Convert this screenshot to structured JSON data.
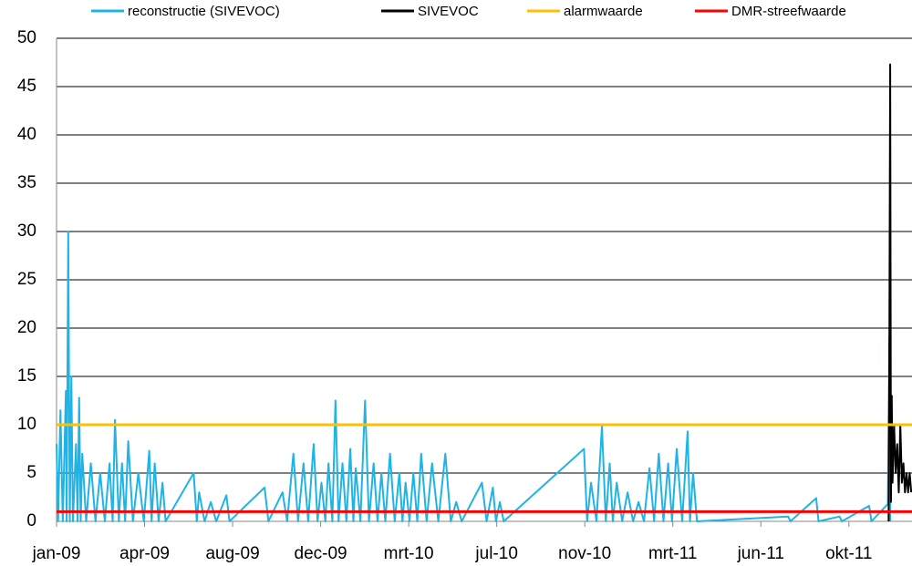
{
  "chart_data": {
    "type": "line",
    "xlim": [
      0,
      1098
    ],
    "xticks": [
      {
        "value": 0,
        "label": "jan-09"
      },
      {
        "value": 113,
        "label": "apr-09"
      },
      {
        "value": 226,
        "label": "aug-09"
      },
      {
        "value": 339,
        "label": "dec-09"
      },
      {
        "value": 452,
        "label": "mrt-10"
      },
      {
        "value": 565,
        "label": "jul-10"
      },
      {
        "value": 678,
        "label": "nov-10"
      },
      {
        "value": 791,
        "label": "mrt-11"
      },
      {
        "value": 904,
        "label": "jun-11"
      },
      {
        "value": 1017,
        "label": "okt-11"
      }
    ],
    "ylim": [
      0,
      50
    ],
    "yticks": [
      0,
      5,
      10,
      15,
      20,
      25,
      30,
      35,
      40,
      45,
      50
    ],
    "grid": true,
    "legend": "top",
    "series": [
      {
        "name": "reconstructie (SIVEVOC)",
        "color": "#1fb4e6",
        "x": [
          0,
          2,
          5,
          8,
          12,
          13,
          15,
          17,
          19,
          21,
          25,
          27,
          29,
          31,
          33,
          38,
          44,
          50,
          56,
          62,
          68,
          72,
          75,
          80,
          84,
          88,
          92,
          98,
          105,
          112,
          119,
          122,
          126,
          131,
          136,
          140,
          176,
          180,
          183,
          190,
          198,
          205,
          218,
          222,
          267,
          272,
          290,
          296,
          304,
          310,
          317,
          323,
          330,
          335,
          340,
          345,
          349,
          354,
          358,
          362,
          367,
          372,
          377,
          381,
          384,
          390,
          396,
          401,
          407,
          412,
          417,
          422,
          428,
          434,
          440,
          444,
          448,
          453,
          458,
          463,
          468,
          475,
          482,
          490,
          499,
          506,
          513,
          520,
          546,
          552,
          560,
          564,
          569,
          574,
          677,
          681,
          686,
          693,
          700,
          705,
          710,
          714,
          719,
          726,
          733,
          740,
          747,
          754,
          761,
          767,
          773,
          779,
          785,
          790,
          796,
          803,
          810,
          813,
          817,
          822,
          939,
          942,
          975,
          978,
          1005,
          1008,
          1043,
          1046,
          1067,
          1069,
          1070
        ],
        "values": [
          8,
          0,
          11.5,
          0,
          13.5,
          0,
          30,
          0,
          15,
          0,
          8,
          0,
          12.8,
          0,
          7,
          0,
          6,
          0,
          5,
          0,
          6,
          0,
          10.5,
          0,
          6,
          0,
          8.3,
          0,
          5,
          0,
          7.3,
          0,
          6,
          0,
          4,
          0,
          5,
          0,
          3,
          0,
          2,
          0,
          2.7,
          0,
          3.5,
          0,
          3,
          0,
          7,
          0,
          6,
          0,
          8,
          0,
          4,
          0,
          6,
          0,
          12.5,
          0,
          6,
          0,
          7.5,
          0,
          5.5,
          0,
          12.5,
          0,
          6,
          0,
          5,
          0,
          7,
          0,
          5,
          0,
          4,
          0,
          5,
          0,
          7,
          0,
          6,
          0,
          7,
          0,
          2,
          0,
          4,
          0,
          3.5,
          0,
          2,
          0,
          7.5,
          0,
          4,
          0,
          9.8,
          0,
          6,
          0,
          4,
          0,
          3,
          0,
          2,
          0,
          5.5,
          0,
          7,
          0,
          6,
          0,
          7.5,
          0,
          9.3,
          0,
          5,
          0,
          0.5,
          0,
          2.4,
          0,
          0.5,
          0,
          1.6,
          0,
          1.8,
          19,
          0
        ]
      },
      {
        "name": "SIVEVOC",
        "color": "#000000",
        "x": [
          1068,
          1069,
          1070,
          1071,
          1072,
          1073,
          1075,
          1077,
          1079,
          1081,
          1083,
          1085,
          1087,
          1089,
          1091,
          1093,
          1095,
          1097
        ],
        "values": [
          0,
          20,
          47.3,
          2,
          13,
          4,
          10,
          5,
          8,
          3,
          10,
          4,
          6,
          3,
          5,
          3,
          5,
          3
        ]
      },
      {
        "name": "alarmwaarde",
        "color": "#ffc000",
        "value": 10
      },
      {
        "name": "DMR-streefwaarde",
        "color": "#ff0000",
        "value": 1
      }
    ]
  }
}
